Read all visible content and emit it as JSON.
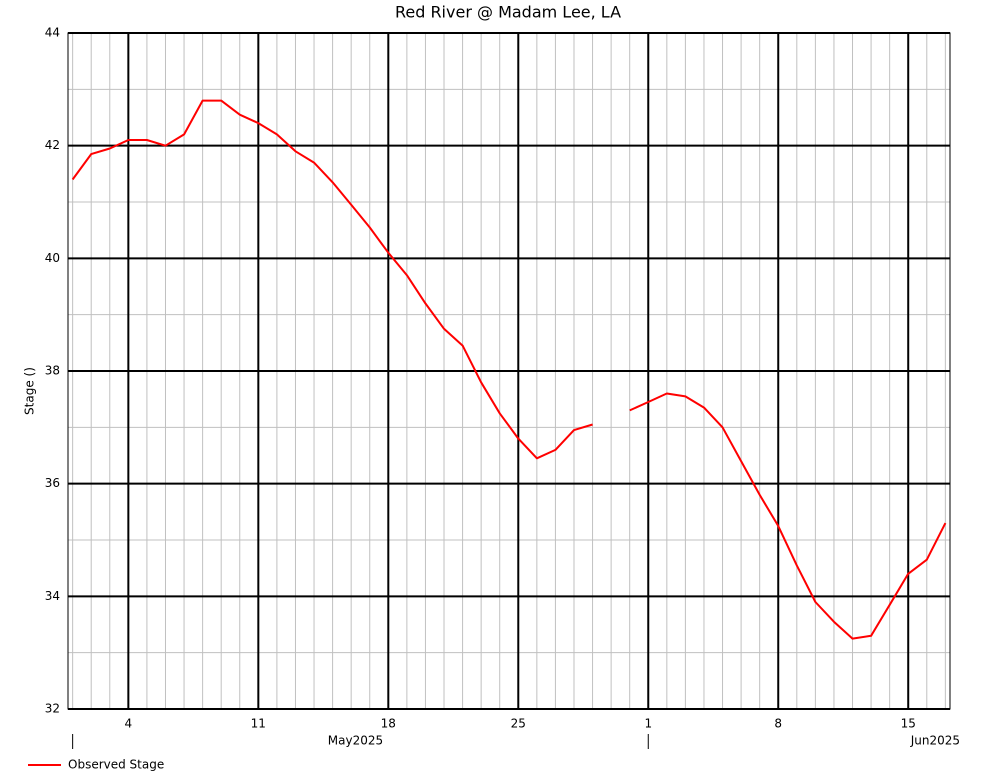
{
  "chart_data": {
    "type": "line",
    "title": "Red River @ Madam Lee, LA",
    "y_label": "Stage ()",
    "x": [
      "2025-05-01",
      "2025-05-02",
      "2025-05-03",
      "2025-05-04",
      "2025-05-05",
      "2025-05-06",
      "2025-05-07",
      "2025-05-08",
      "2025-05-09",
      "2025-05-10",
      "2025-05-11",
      "2025-05-12",
      "2025-05-13",
      "2025-05-14",
      "2025-05-15",
      "2025-05-16",
      "2025-05-17",
      "2025-05-18",
      "2025-05-19",
      "2025-05-20",
      "2025-05-21",
      "2025-05-22",
      "2025-05-23",
      "2025-05-24",
      "2025-05-25",
      "2025-05-26",
      "2025-05-27",
      "2025-05-28",
      "2025-05-29",
      "2025-05-30",
      "2025-05-31",
      "2025-06-01",
      "2025-06-02",
      "2025-06-03",
      "2025-06-04",
      "2025-06-05",
      "2025-06-06",
      "2025-06-07",
      "2025-06-08",
      "2025-06-09",
      "2025-06-10",
      "2025-06-11",
      "2025-06-12",
      "2025-06-13",
      "2025-06-14",
      "2025-06-15",
      "2025-06-16",
      "2025-06-17"
    ],
    "series": [
      {
        "name": "Observed Stage",
        "color": "#ff0000",
        "values": [
          41.4,
          41.85,
          41.95,
          42.1,
          42.1,
          42.0,
          42.2,
          42.8,
          42.8,
          42.55,
          42.4,
          42.2,
          41.9,
          41.7,
          41.35,
          40.95,
          40.55,
          40.1,
          39.7,
          39.2,
          38.75,
          38.45,
          37.8,
          37.25,
          36.8,
          36.45,
          36.6,
          36.95,
          37.05,
          null,
          37.3,
          37.45,
          37.6,
          37.55,
          37.35,
          37.0,
          36.4,
          35.8,
          35.25,
          34.55,
          33.9,
          33.55,
          33.25,
          33.3,
          33.85,
          34.4,
          34.65,
          35.3
        ]
      }
    ],
    "xlim": [
      "2025-04-30T18:00:00Z",
      "2025-06-17T06:00:00Z"
    ],
    "xticks": [
      {
        "value": "2025-05-04",
        "label": "4"
      },
      {
        "value": "2025-05-11",
        "label": "11"
      },
      {
        "value": "2025-05-18",
        "label": "18"
      },
      {
        "value": "2025-05-25",
        "label": "25"
      },
      {
        "value": "2025-06-01",
        "label": "1"
      },
      {
        "value": "2025-06-08",
        "label": "8"
      },
      {
        "value": "2025-06-15",
        "label": "15"
      }
    ],
    "x_month_labels": [
      {
        "value": "2025-05-01",
        "label": "May2025"
      },
      {
        "value": "2025-06-01",
        "label": "Jun2025"
      }
    ],
    "ylim": [
      32,
      44
    ],
    "yticks": [
      32,
      34,
      36,
      38,
      40,
      42,
      44
    ],
    "grid": true,
    "legend": "bottom-left"
  }
}
